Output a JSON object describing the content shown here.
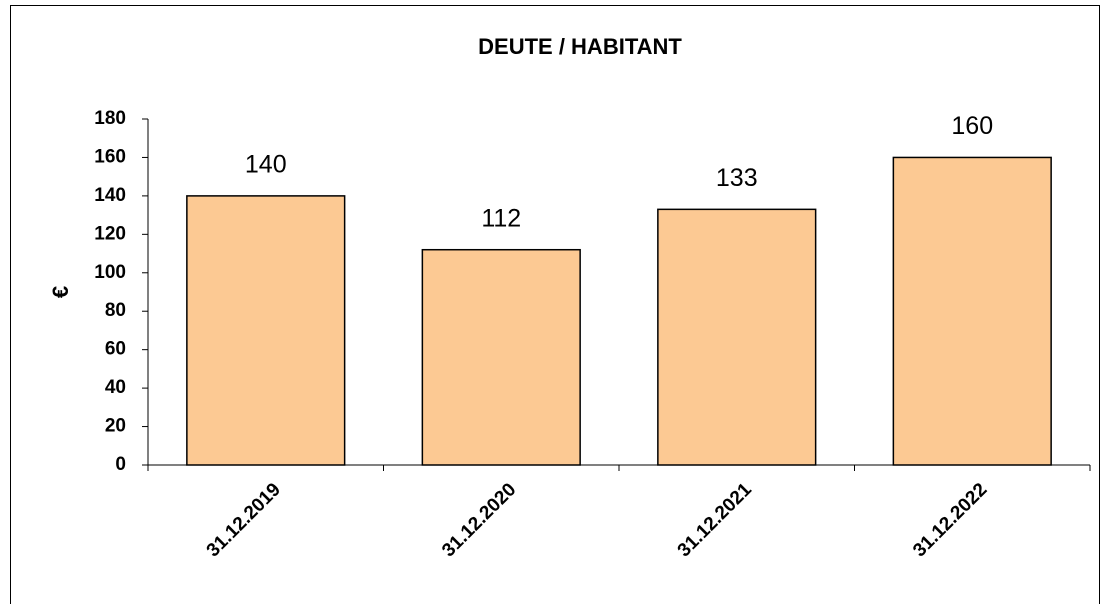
{
  "chart_data": {
    "type": "bar",
    "title": "DEUTE / HABITANT",
    "y_label": "€",
    "categories": [
      "31.12.2019",
      "31.12.2020",
      "31.12.2021",
      "31.12.2022"
    ],
    "values": [
      140,
      112,
      133,
      160
    ],
    "color": "#fcc993",
    "ylim": [
      0,
      180
    ],
    "yticks": [
      0,
      20,
      40,
      60,
      80,
      100,
      120,
      140,
      160,
      180
    ],
    "grid": false
  }
}
